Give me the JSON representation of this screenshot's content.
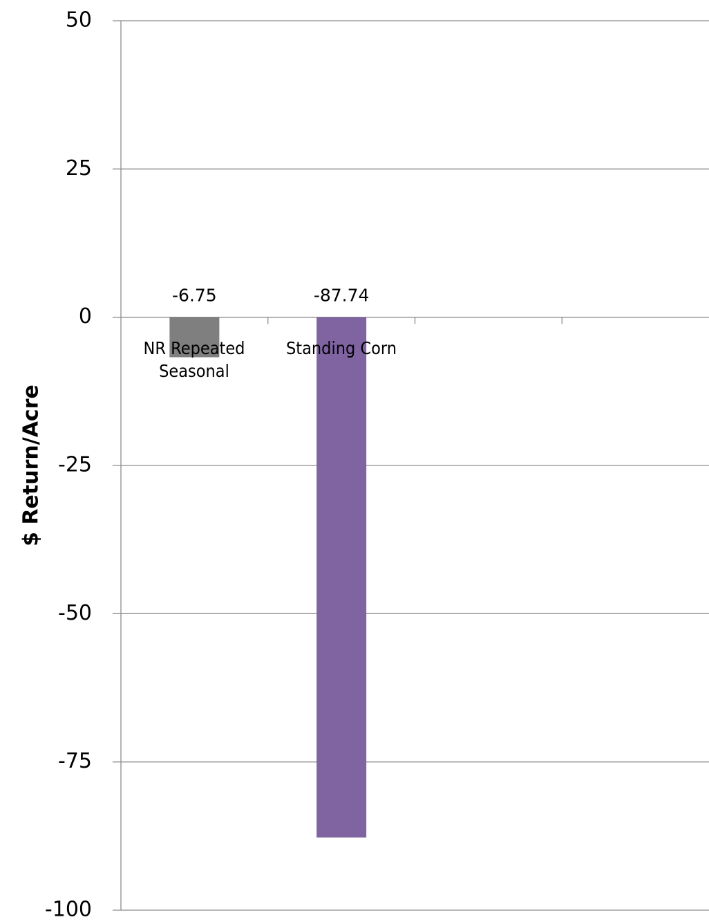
{
  "chart_data": {
    "type": "bar",
    "y_label": "$ Return/Acre",
    "categories": [
      "NR Repeated Seasonal",
      "Standing Corn",
      null,
      null
    ],
    "values": [
      -6.75,
      -87.74,
      null,
      null
    ],
    "colors": [
      "#7f7f7f",
      "#8064a2"
    ],
    "ylim": [
      -100,
      50
    ],
    "yticks": [
      -100,
      -75,
      -50,
      -25,
      0,
      25,
      50
    ],
    "grid": true
  }
}
